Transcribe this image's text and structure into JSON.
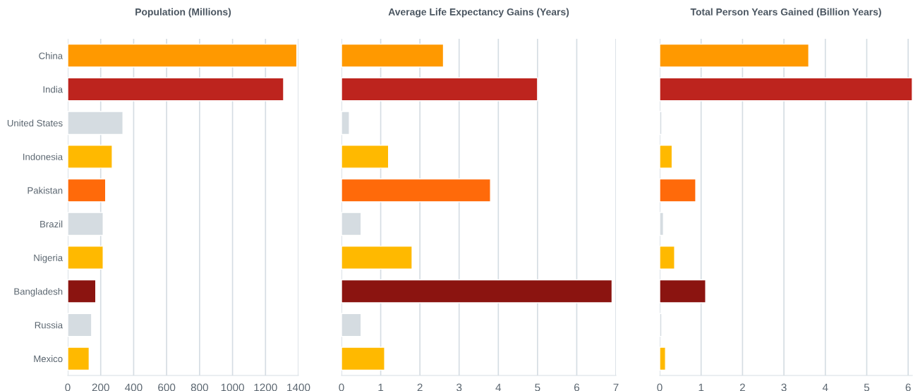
{
  "chart_data": [
    {
      "type": "bar",
      "orientation": "horizontal",
      "title": "Population (Millions)",
      "categories": [
        "China",
        "India",
        "United States",
        "Indonesia",
        "Pakistan",
        "Brazil",
        "Nigeria",
        "Bangladesh",
        "Russia",
        "Mexico"
      ],
      "values": [
        1390,
        1310,
        335,
        270,
        230,
        215,
        215,
        170,
        145,
        130
      ],
      "colors": [
        "#ff9900",
        "#bd241e",
        "#d5dce1",
        "#ffb900",
        "#ff6a0a",
        "#d5dce1",
        "#ffb900",
        "#8b1410",
        "#d5dce1",
        "#ffb900"
      ],
      "xlim": [
        0,
        1400
      ],
      "xticks": [
        0,
        200,
        400,
        600,
        800,
        1000,
        1200,
        1400
      ],
      "grid": "x"
    },
    {
      "type": "bar",
      "orientation": "horizontal",
      "title": "Average Life Expectancy Gains (Years)",
      "categories": [
        null,
        null,
        null,
        null,
        null,
        null,
        null,
        null,
        null,
        null
      ],
      "values": [
        2.6,
        5.0,
        0.2,
        1.2,
        3.8,
        0.5,
        1.8,
        6.9,
        0.5,
        1.1
      ],
      "colors": [
        "#ff9900",
        "#bd241e",
        "#d5dce1",
        "#ffb900",
        "#ff6a0a",
        "#d5dce1",
        "#ffb900",
        "#8b1410",
        "#d5dce1",
        "#ffb900"
      ],
      "xlim": [
        0,
        7
      ],
      "xticks": [
        0,
        1,
        2,
        3,
        4,
        5,
        6,
        7
      ],
      "grid": "x",
      "tick_labels": "x"
    },
    {
      "type": "bar",
      "orientation": "horizontal",
      "title": "Total Person Years Gained (Billion Years)",
      "categories": [
        null,
        null,
        null,
        null,
        null,
        null,
        null,
        null,
        null,
        null
      ],
      "values": [
        3.6,
        6.1,
        0.05,
        0.3,
        0.87,
        0.09,
        0.36,
        1.11,
        0.05,
        0.14
      ],
      "colors": [
        "#ff9900",
        "#bd241e",
        "#d5dce1",
        "#ffb900",
        "#ff6a0a",
        "#d5dce1",
        "#ffb900",
        "#8b1410",
        "#d5dce1",
        "#ffb900"
      ],
      "xlim": [
        0,
        6.1
      ],
      "xticks": [
        0,
        1,
        2,
        3,
        4,
        5,
        6
      ],
      "grid": "x",
      "tick_labels": "x"
    }
  ]
}
